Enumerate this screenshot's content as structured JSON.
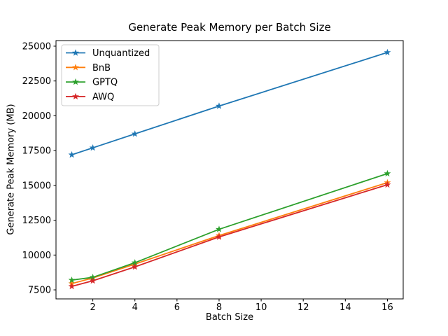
{
  "figure": {
    "background": "#ffffff",
    "text_color": "#000000",
    "spine_color": "#000000",
    "legend_border_color": "#cccccc"
  },
  "chart_data": {
    "type": "line",
    "title": "Generate Peak Memory per Batch Size",
    "xlabel": "Batch Size",
    "ylabel": "Generate Peak Memory (MB)",
    "x": [
      1,
      2,
      4,
      8,
      16
    ],
    "series": [
      {
        "name": "Unquantized",
        "color": "#1f77b4",
        "marker": "star",
        "values": [
          17200,
          17700,
          18700,
          20700,
          24550
        ]
      },
      {
        "name": "BnB",
        "color": "#ff7f0e",
        "marker": "star",
        "values": [
          7950,
          8350,
          9350,
          11400,
          15200
        ]
      },
      {
        "name": "GPTQ",
        "color": "#2ca02c",
        "marker": "star",
        "values": [
          8200,
          8400,
          9450,
          11850,
          15850
        ]
      },
      {
        "name": "AWQ",
        "color": "#d62728",
        "marker": "star",
        "values": [
          7750,
          8150,
          9150,
          11300,
          15050
        ]
      }
    ],
    "xlim": [
      0.25,
      16.75
    ],
    "ylim": [
      6850,
      25400
    ],
    "xticks": [
      2,
      4,
      6,
      8,
      10,
      12,
      14,
      16
    ],
    "yticks": [
      7500,
      10000,
      12500,
      15000,
      17500,
      20000,
      22500,
      25000
    ],
    "grid": false,
    "legend_position": "upper left"
  }
}
